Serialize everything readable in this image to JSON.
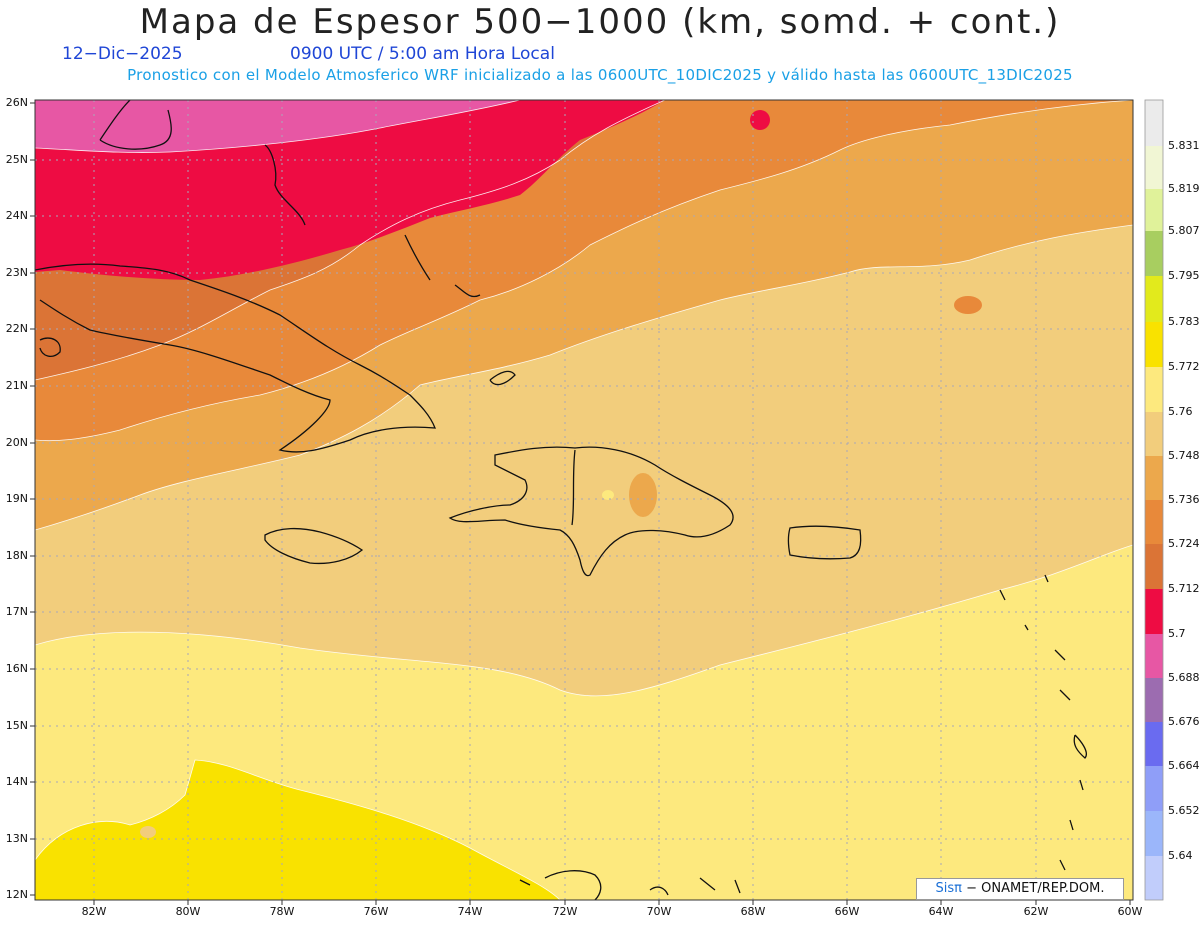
{
  "header": {
    "title": "Mapa de Espesor 500−1000 (km, somd. + cont.)",
    "date": "12−Dic−2025",
    "time": "0900 UTC / 5:00 am Hora Local",
    "description": "Pronostico con el Modelo Atmosferico WRF inicializado a las 0600UTC_10DIC2025 y válido hasta las  0600UTC_13DIC2025"
  },
  "map": {
    "lat_labels": [
      "26N",
      "25N",
      "24N",
      "23N",
      "22N",
      "21N",
      "20N",
      "19N",
      "18N",
      "17N",
      "16N",
      "15N",
      "14N",
      "13N",
      "12N"
    ],
    "lon_labels": [
      "82W",
      "80W",
      "78W",
      "76W",
      "74W",
      "72W",
      "70W",
      "68W",
      "66W",
      "64W",
      "62W",
      "60W"
    ],
    "lat_range": [
      12,
      26
    ],
    "lon_range": [
      -83.2,
      -60
    ],
    "gridlines": true
  },
  "colorbar": {
    "labels": [
      "5.831",
      "5.819",
      "5.807",
      "5.795",
      "5.783",
      "5.772",
      "5.76",
      "5.748",
      "5.736",
      "5.724",
      "5.712",
      "5.7",
      "5.688",
      "5.676",
      "5.664",
      "5.652",
      "5.64"
    ],
    "colors": [
      "#ebebeb",
      "#f1f6d4",
      "#e0f29a",
      "#a8ce60",
      "#e2ea1c",
      "#f9e200",
      "#fde97e",
      "#f2cd7c",
      "#eca84c",
      "#e8893a",
      "#db7436",
      "#ee0c43",
      "#e757a4",
      "#9c6cb0",
      "#6a6bf0",
      "#8f9ef8",
      "#9bb6fa",
      "#c1cdfb"
    ]
  },
  "credit": {
    "logo": "Sisπ",
    "text": "− ONAMET/REP.DOM."
  }
}
